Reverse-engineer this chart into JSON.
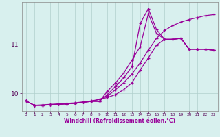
{
  "xlabel": "Windchill (Refroidissement éolien,°C)",
  "xlim": [
    -0.5,
    23.5
  ],
  "ylim": [
    9.65,
    11.85
  ],
  "xticks": [
    0,
    1,
    2,
    3,
    4,
    5,
    6,
    7,
    8,
    9,
    10,
    11,
    12,
    13,
    14,
    15,
    16,
    17,
    18,
    19,
    20,
    21,
    22,
    23
  ],
  "yticks": [
    10,
    11
  ],
  "bg_color": "#d8f0ee",
  "grid_color": "#b0d0cc",
  "line_color": "#990099",
  "line1_y": [
    9.85,
    9.76,
    9.76,
    9.77,
    9.78,
    9.79,
    9.8,
    9.82,
    9.84,
    9.84,
    10.05,
    10.22,
    10.42,
    10.68,
    10.95,
    11.62,
    11.22,
    11.1,
    11.1,
    11.12,
    10.9,
    10.9,
    10.9,
    10.88
  ],
  "line2_y": [
    9.85,
    9.76,
    9.76,
    9.77,
    9.78,
    9.79,
    9.8,
    9.82,
    9.84,
    9.84,
    9.98,
    10.15,
    10.32,
    10.55,
    11.42,
    11.72,
    11.3,
    11.1,
    11.1,
    11.12,
    10.9,
    10.9,
    10.9,
    10.88
  ],
  "line3_y": [
    9.85,
    9.76,
    9.76,
    9.77,
    9.78,
    9.79,
    9.8,
    9.82,
    9.84,
    9.88,
    9.92,
    9.98,
    10.08,
    10.22,
    10.48,
    10.72,
    10.98,
    11.1,
    11.1,
    11.12,
    10.9,
    10.9,
    10.9,
    10.88
  ],
  "line4_y": [
    9.85,
    9.76,
    9.77,
    9.78,
    9.79,
    9.8,
    9.81,
    9.83,
    9.85,
    9.88,
    9.95,
    10.08,
    10.22,
    10.4,
    10.62,
    10.88,
    11.12,
    11.28,
    11.38,
    11.45,
    11.5,
    11.54,
    11.58,
    11.6
  ]
}
